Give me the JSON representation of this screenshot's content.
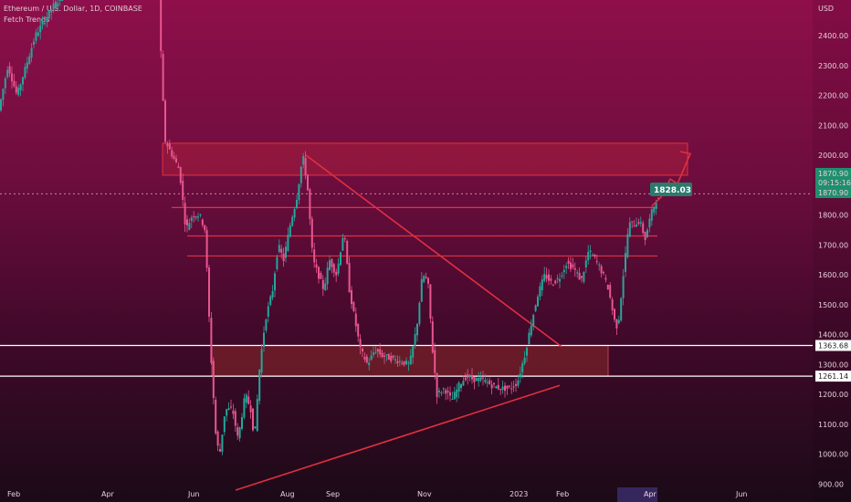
{
  "header": {
    "symbol_line": "Ethereum / U.S. Dollar, 1D, COINBASE",
    "indicator": "Fetch Trends"
  },
  "chart_data": {
    "type": "candlestick",
    "currency": "USD",
    "y_ticks": [
      "2400.00",
      "2300.00",
      "2200.00",
      "2100.00",
      "2000.00",
      "1900.00",
      "1800.00",
      "1700.00",
      "1600.00",
      "1500.00",
      "1400.00",
      "1300.00",
      "1200.00",
      "1100.00",
      "1000.00",
      "900.00"
    ],
    "x_ticks": [
      "Feb",
      "Apr",
      "Jun",
      "Aug",
      "Sep",
      "Nov",
      "2023",
      "Feb",
      "Apr",
      "Jun"
    ],
    "ylim": [
      880,
      2570
    ],
    "current_price": "1828.03",
    "price_badge": {
      "price": "1870.90",
      "countdown": "09:15:16",
      "price2": "1870.90"
    },
    "level_labels": [
      "1363.68",
      "1261.14"
    ],
    "horizontal_levels": [
      1825,
      1730,
      1663
    ],
    "resistance_zone": [
      1933,
      2040
    ],
    "support_zone": [
      1261.14,
      1363.68
    ],
    "trendline_desc": [
      [
        2000,
        1360
      ]
    ],
    "trendline_asc": [
      [
        880,
        1230
      ]
    ],
    "colors": {
      "up": "#26a69a",
      "down": "#e8568f",
      "level": "#e0303f",
      "white_line": "#ffffff",
      "badge": "#2c7a6c"
    }
  }
}
